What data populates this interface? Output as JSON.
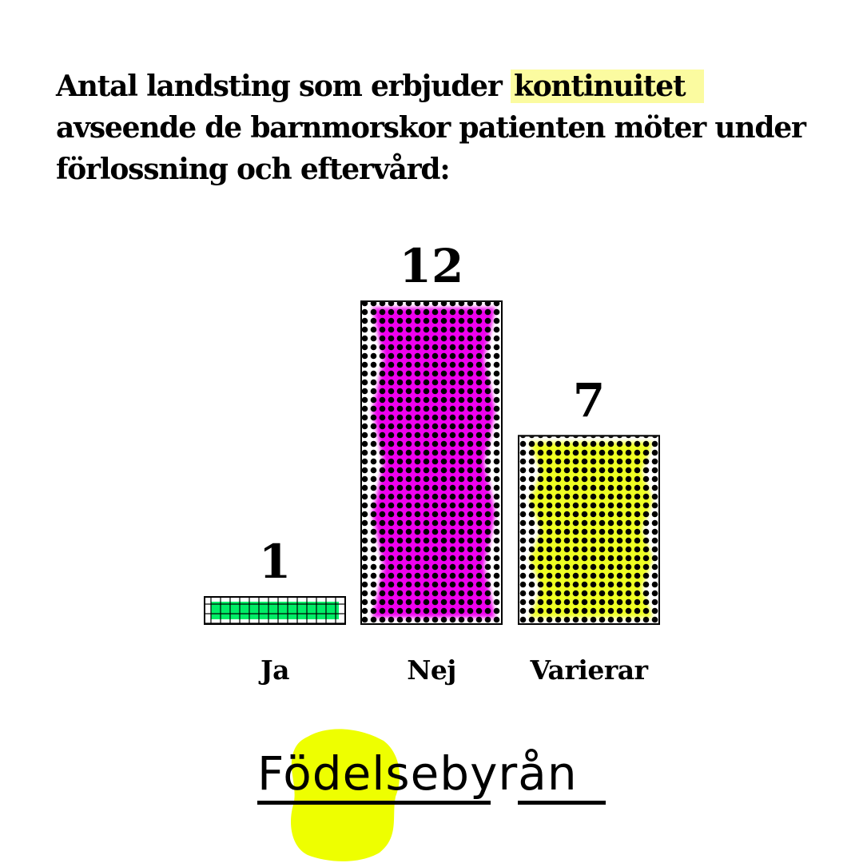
{
  "title": {
    "before": "Antal landsting som erbjuder ",
    "highlight": "kontinuitet",
    "after": " avseende de barnmorskor patienten möter under förlossning och eftervård:"
  },
  "colors": {
    "highlight": "#fbfba0",
    "ja": "#00ee66",
    "nej": "#ee00ee",
    "varierar": "#eeff22",
    "brand_blob": "#eeff00"
  },
  "chart_data": {
    "type": "bar",
    "categories": [
      "Ja",
      "Nej",
      "Varierar"
    ],
    "values": [
      1,
      12,
      7
    ],
    "title": "Antal landsting som erbjuder kontinuitet avseende de barnmorskor patienten möter under förlossning och eftervård:",
    "xlabel": "",
    "ylabel": "",
    "ylim": [
      0,
      12
    ],
    "grid": false,
    "legend": "none"
  },
  "brand": {
    "name": "Födelsebyrån"
  }
}
